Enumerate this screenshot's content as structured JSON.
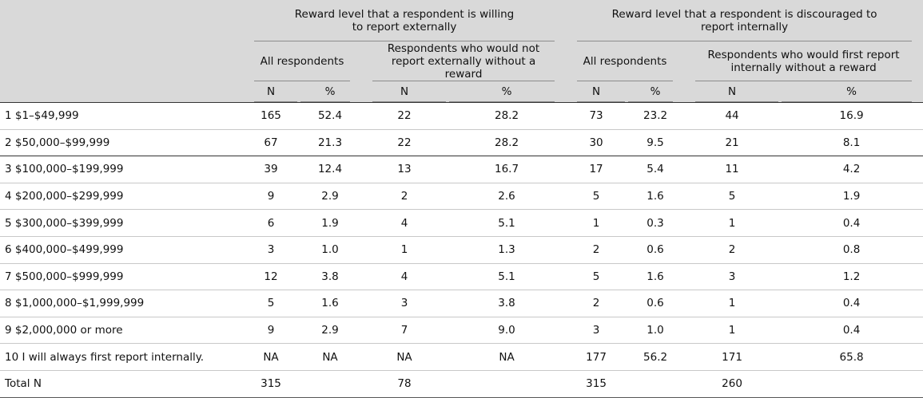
{
  "header": {
    "group1": "Reward level that a respondent is willing to report externally",
    "group2": "Reward level that a respondent is discouraged to report internally",
    "sub_all": "All respondents",
    "sub_ext": "Respondents who would not report externally without a reward",
    "sub_int": "Respondents who would first report internally without a reward",
    "n": "N",
    "pct": "%"
  },
  "rows": [
    {
      "label": "1 $1–$49,999",
      "c": [
        "165",
        "52.4",
        "22",
        "28.2",
        "73",
        "23.2",
        "44",
        "16.9"
      ]
    },
    {
      "label": "2 $50,000–$99,999",
      "c": [
        "67",
        "21.3",
        "22",
        "28.2",
        "30",
        "9.5",
        "21",
        "8.1"
      ]
    },
    {
      "label": "3 $100,000–$199,999",
      "c": [
        "39",
        "12.4",
        "13",
        "16.7",
        "17",
        "5.4",
        "11",
        "4.2"
      ]
    },
    {
      "label": "4 $200,000–$299,999",
      "c": [
        "9",
        "2.9",
        "2",
        "2.6",
        "5",
        "1.6",
        "5",
        "1.9"
      ]
    },
    {
      "label": "5 $300,000–$399,999",
      "c": [
        "6",
        "1.9",
        "4",
        "5.1",
        "1",
        "0.3",
        "1",
        "0.4"
      ]
    },
    {
      "label": "6 $400,000–$499,999",
      "c": [
        "3",
        "1.0",
        "1",
        "1.3",
        "2",
        "0.6",
        "2",
        "0.8"
      ]
    },
    {
      "label": "7 $500,000–$999,999",
      "c": [
        "12",
        "3.8",
        "4",
        "5.1",
        "5",
        "1.6",
        "3",
        "1.2"
      ]
    },
    {
      "label": "8 $1,000,000–$1,999,999",
      "c": [
        "5",
        "1.6",
        "3",
        "3.8",
        "2",
        "0.6",
        "1",
        "0.4"
      ]
    },
    {
      "label": "9 $2,000,000 or more",
      "c": [
        "9",
        "2.9",
        "7",
        "9.0",
        "3",
        "1.0",
        "1",
        "0.4"
      ]
    },
    {
      "label": "10 I will always first report internally.",
      "c": [
        "NA",
        "NA",
        "NA",
        "NA",
        "177",
        "56.2",
        "171",
        "65.8"
      ]
    },
    {
      "label": "Total N",
      "c": [
        "315",
        "",
        "78",
        "",
        "315",
        "",
        "260",
        ""
      ]
    }
  ]
}
